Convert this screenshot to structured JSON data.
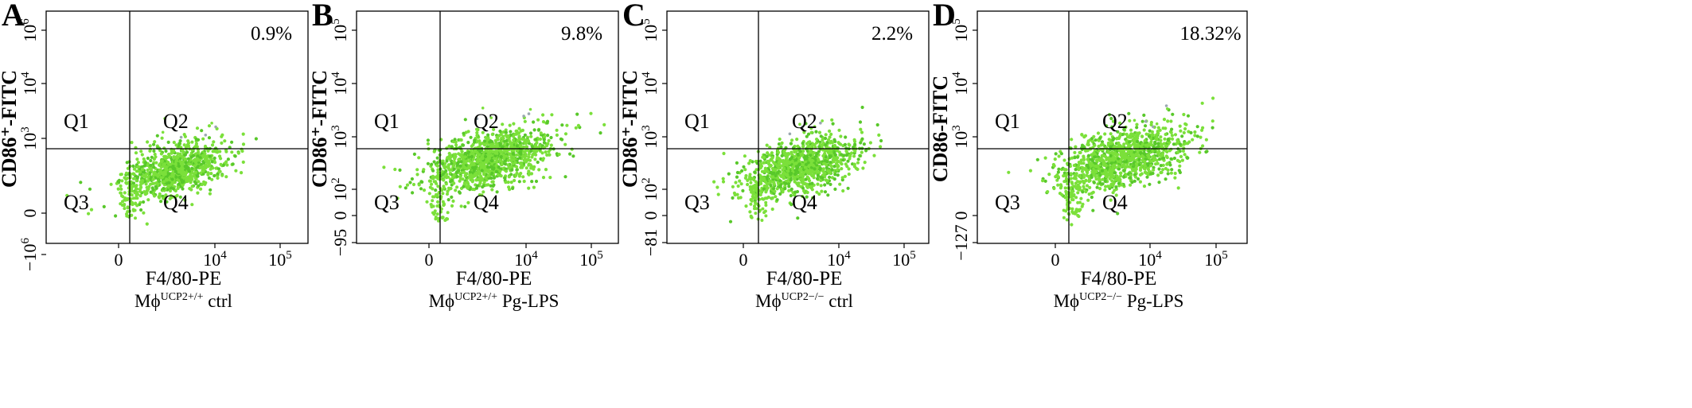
{
  "figure": {
    "panels": [
      {
        "letter": "A",
        "ylabel": "CD86⁺-FITC",
        "xlabel": "F4/80-PE",
        "caption": {
          "base": "Mϕ",
          "sup": "UCP2+/+",
          "rest": " ctrl"
        },
        "percent": "0.9%",
        "quadrants": [
          "Q1",
          "Q2",
          "Q3",
          "Q4"
        ],
        "x_ticks": [
          {
            "base": "0",
            "sup": ""
          },
          {
            "base": "10",
            "sup": "4"
          },
          {
            "base": "10",
            "sup": "5"
          }
        ],
        "y_ticks": [
          {
            "base": "−10",
            "sup": "6"
          },
          {
            "base": "0",
            "sup": ""
          },
          {
            "base": "10",
            "sup": "3"
          },
          {
            "base": "10",
            "sup": "4"
          },
          {
            "base": "10",
            "sup": "6"
          }
        ]
      },
      {
        "letter": "B",
        "ylabel": "CD86⁺-FITC",
        "xlabel": "F4/80-PE",
        "caption": {
          "base": "Mϕ",
          "sup": "UCP2+/+",
          "rest": " Pg-LPS"
        },
        "percent": "9.8%",
        "quadrants": [
          "Q1",
          "Q2",
          "Q3",
          "Q4"
        ],
        "x_ticks": [
          {
            "base": "0",
            "sup": ""
          },
          {
            "base": "10",
            "sup": "4"
          },
          {
            "base": "10",
            "sup": "5"
          }
        ],
        "y_ticks": [
          {
            "base": "−95",
            "sup": ""
          },
          {
            "base": "0",
            "sup": ""
          },
          {
            "base": "10",
            "sup": "2"
          },
          {
            "base": "10",
            "sup": "3"
          },
          {
            "base": "10",
            "sup": "4"
          },
          {
            "base": "10",
            "sup": "5"
          }
        ]
      },
      {
        "letter": "C",
        "ylabel": "CD86⁺-FITC",
        "xlabel": "F4/80-PE",
        "caption": {
          "base": "Mϕ",
          "sup": "UCP2−/−",
          "rest": " ctrl"
        },
        "percent": "2.2%",
        "quadrants": [
          "Q1",
          "Q2",
          "Q3",
          "Q4"
        ],
        "x_ticks": [
          {
            "base": "0",
            "sup": ""
          },
          {
            "base": "10",
            "sup": "4"
          },
          {
            "base": "10",
            "sup": "5"
          }
        ],
        "y_ticks": [
          {
            "base": "−81",
            "sup": ""
          },
          {
            "base": "0",
            "sup": ""
          },
          {
            "base": "10",
            "sup": "2"
          },
          {
            "base": "10",
            "sup": "3"
          },
          {
            "base": "10",
            "sup": "4"
          },
          {
            "base": "10",
            "sup": "5"
          }
        ]
      },
      {
        "letter": "D",
        "ylabel": "CD86-FITC",
        "xlabel": "F4/80-PE",
        "caption": {
          "base": "Mϕ",
          "sup": "UCP2−/−",
          "rest": " Pg-LPS"
        },
        "percent": "18.32%",
        "quadrants": [
          "Q1",
          "Q2",
          "Q3",
          "Q4"
        ],
        "x_ticks": [
          {
            "base": "0",
            "sup": ""
          },
          {
            "base": "10",
            "sup": "4"
          },
          {
            "base": "10",
            "sup": "5"
          }
        ],
        "y_ticks": [
          {
            "base": "−127",
            "sup": ""
          },
          {
            "base": "0",
            "sup": ""
          },
          {
            "base": "10",
            "sup": "3"
          },
          {
            "base": "10",
            "sup": "4"
          },
          {
            "base": "10",
            "sup": "5"
          }
        ]
      }
    ]
  },
  "colors": {
    "dots": "#7be03a",
    "dots_dark": "#58c82a",
    "outlier": "#9aa8b0",
    "axis": "#000000"
  },
  "chart_data": [
    {
      "type": "scatter",
      "title": "A",
      "xlabel": "F4/80-PE",
      "ylabel": "CD86⁺-FITC",
      "series": [
        {
          "name": "Mϕ UCP2+/+ ctrl",
          "cluster_center": [
            "2×10³",
            "~10²·⁵"
          ],
          "n_points": 900
        }
      ],
      "quadrant_gate": {
        "x": "≈10²·⁵",
        "y": "≈10³"
      },
      "q2_percent": 0.9
    },
    {
      "type": "scatter",
      "title": "B",
      "xlabel": "F4/80-PE",
      "ylabel": "CD86⁺-FITC",
      "series": [
        {
          "name": "Mϕ UCP2+/+ Pg-LPS",
          "cluster_center": [
            "~5×10³",
            "~10²·⁷"
          ],
          "n_points": 1100
        }
      ],
      "quadrant_gate": {
        "x": "≈10²·⁵",
        "y": "≈10³"
      },
      "q2_percent": 9.8
    },
    {
      "type": "scatter",
      "title": "C",
      "xlabel": "F4/80-PE",
      "ylabel": "CD86⁺-FITC",
      "series": [
        {
          "name": "Mϕ UCP2−/− ctrl",
          "cluster_center": [
            "~3×10³",
            "~10²·⁵"
          ],
          "n_points": 1000
        }
      ],
      "quadrant_gate": {
        "x": "≈10²·⁵",
        "y": "≈10³"
      },
      "q2_percent": 2.2
    },
    {
      "type": "scatter",
      "title": "D",
      "xlabel": "F4/80-PE",
      "ylabel": "CD86-FITC",
      "series": [
        {
          "name": "Mϕ UCP2−/− Pg-LPS",
          "cluster_center": [
            "~5×10³",
            "~10²·⁸"
          ],
          "n_points": 1100
        }
      ],
      "quadrant_gate": {
        "x": "≈10²·⁵",
        "y": "≈10³"
      },
      "q2_percent": 18.32
    }
  ]
}
